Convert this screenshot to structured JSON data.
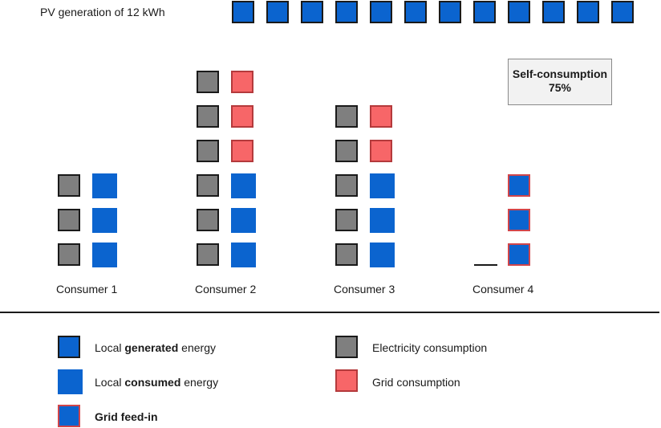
{
  "header": {
    "pv_title": "PV generation of 12 kWh",
    "pv_blocks": 12
  },
  "self_consumption": {
    "label": "Self-consumption",
    "value": "75%"
  },
  "consumers": [
    {
      "label": "Consumer 1",
      "consumption": 3,
      "local_consumed": 3,
      "grid": 0,
      "feed_in": 0
    },
    {
      "label": "Consumer 2",
      "consumption": 6,
      "local_consumed": 3,
      "grid": 3,
      "feed_in": 0
    },
    {
      "label": "Consumer 3",
      "consumption": 5,
      "local_consumed": 3,
      "grid": 2,
      "feed_in": 0
    },
    {
      "label": "Consumer 4",
      "consumption": 0,
      "local_consumed": 0,
      "grid": 0,
      "feed_in": 3
    }
  ],
  "legend": {
    "generated": {
      "pre": "Local ",
      "bold": "generated",
      "post": " energy"
    },
    "consumed": {
      "pre": "Local ",
      "bold": "consumed",
      "post": " energy"
    },
    "feed_in": {
      "bold": "Grid feed-in"
    },
    "electricity": {
      "text": "Electricity consumption"
    },
    "grid_consumption": {
      "text": "Grid consumption"
    }
  },
  "colors": {
    "blue": "#0b64cf",
    "gray": "#7f7f7f",
    "red": "#f76668",
    "red_border": "#d0454a",
    "border": "#1a1a1a",
    "box_bg": "#f2f2f2"
  }
}
